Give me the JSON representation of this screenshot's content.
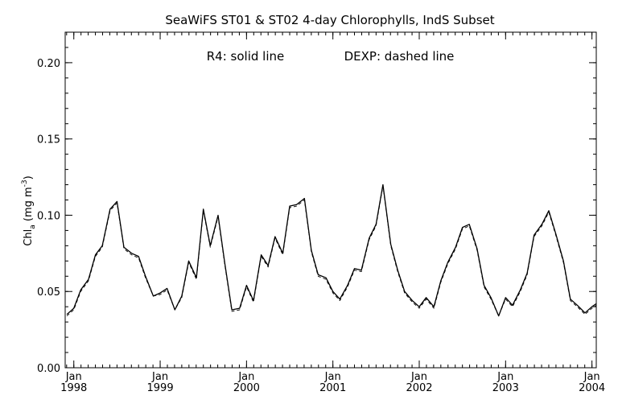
{
  "chart_data": {
    "type": "line",
    "title": "SeaWiFS ST01 & ST02 4-day Chlorophylls, IndS Subset",
    "annotation": {
      "r4": "R4: solid line",
      "dexp": "DEXP: dashed line"
    },
    "ylabel": {
      "main": "Chl",
      "sub": "a",
      "unit_open": " (mg m",
      "sup": "-3",
      "unit_close": ")"
    },
    "ylim": [
      0.0,
      0.22
    ],
    "xlim": [
      1997.9,
      2004.05
    ],
    "yticks": [
      "0.00",
      "0.05",
      "0.10",
      "0.15",
      "0.20"
    ],
    "xticks": [
      {
        "month": "Jan",
        "year": "1998"
      },
      {
        "month": "Jan",
        "year": "1999"
      },
      {
        "month": "Jan",
        "year": "2000"
      },
      {
        "month": "Jan",
        "year": "2001"
      },
      {
        "month": "Jan",
        "year": "2002"
      },
      {
        "month": "Jan",
        "year": "2003"
      },
      {
        "month": "Jan",
        "year": "2004"
      }
    ],
    "x": [
      1997.92,
      1998.0,
      1998.08,
      1998.17,
      1998.25,
      1998.33,
      1998.42,
      1998.5,
      1998.58,
      1998.67,
      1998.75,
      1998.83,
      1998.92,
      1999.0,
      1999.08,
      1999.17,
      1999.25,
      1999.33,
      1999.42,
      1999.5,
      1999.58,
      1999.67,
      1999.75,
      1999.83,
      1999.92,
      2000.0,
      2000.08,
      2000.17,
      2000.25,
      2000.33,
      2000.42,
      2000.5,
      2000.58,
      2000.67,
      2000.75,
      2000.83,
      2000.92,
      2001.0,
      2001.08,
      2001.17,
      2001.25,
      2001.33,
      2001.42,
      2001.5,
      2001.58,
      2001.67,
      2001.75,
      2001.83,
      2001.92,
      2002.0,
      2002.08,
      2002.17,
      2002.25,
      2002.33,
      2002.42,
      2002.5,
      2002.58,
      2002.67,
      2002.75,
      2002.83,
      2002.92,
      2003.0,
      2003.08,
      2003.17,
      2003.25,
      2003.33,
      2003.42,
      2003.5,
      2003.58,
      2003.67,
      2003.75,
      2003.83,
      2003.92,
      2004.0,
      2004.05
    ],
    "series": [
      {
        "name": "R4",
        "style": "solid",
        "color": "#000000",
        "values": [
          0.035,
          0.039,
          0.051,
          0.058,
          0.074,
          0.08,
          0.104,
          0.109,
          0.079,
          0.075,
          0.073,
          0.06,
          0.047,
          0.049,
          0.052,
          0.038,
          0.047,
          0.07,
          0.059,
          0.104,
          0.08,
          0.1,
          0.068,
          0.038,
          0.039,
          0.054,
          0.044,
          0.074,
          0.067,
          0.086,
          0.075,
          0.106,
          0.107,
          0.111,
          0.077,
          0.061,
          0.059,
          0.05,
          0.045,
          0.054,
          0.065,
          0.064,
          0.085,
          0.094,
          0.12,
          0.081,
          0.064,
          0.05,
          0.044,
          0.04,
          0.046,
          0.04,
          0.057,
          0.069,
          0.079,
          0.092,
          0.094,
          0.078,
          0.054,
          0.046,
          0.034,
          0.046,
          0.041,
          0.051,
          0.062,
          0.087,
          0.094,
          0.103,
          0.088,
          0.07,
          0.045,
          0.041,
          0.036,
          0.04,
          0.042
        ]
      },
      {
        "name": "DEXP",
        "style": "dashed",
        "color": "#000000",
        "values": [
          0.034,
          0.038,
          0.05,
          0.057,
          0.073,
          0.079,
          0.103,
          0.108,
          0.078,
          0.074,
          0.072,
          0.059,
          0.047,
          0.048,
          0.051,
          0.038,
          0.046,
          0.069,
          0.058,
          0.103,
          0.079,
          0.099,
          0.067,
          0.037,
          0.038,
          0.053,
          0.043,
          0.073,
          0.066,
          0.085,
          0.074,
          0.105,
          0.106,
          0.11,
          0.076,
          0.06,
          0.058,
          0.049,
          0.044,
          0.053,
          0.064,
          0.063,
          0.084,
          0.093,
          0.119,
          0.08,
          0.063,
          0.049,
          0.043,
          0.039,
          0.045,
          0.039,
          0.056,
          0.068,
          0.078,
          0.091,
          0.093,
          0.077,
          0.053,
          0.045,
          0.034,
          0.045,
          0.04,
          0.05,
          0.061,
          0.086,
          0.093,
          0.102,
          0.087,
          0.069,
          0.044,
          0.04,
          0.035,
          0.039,
          0.041
        ]
      }
    ]
  }
}
